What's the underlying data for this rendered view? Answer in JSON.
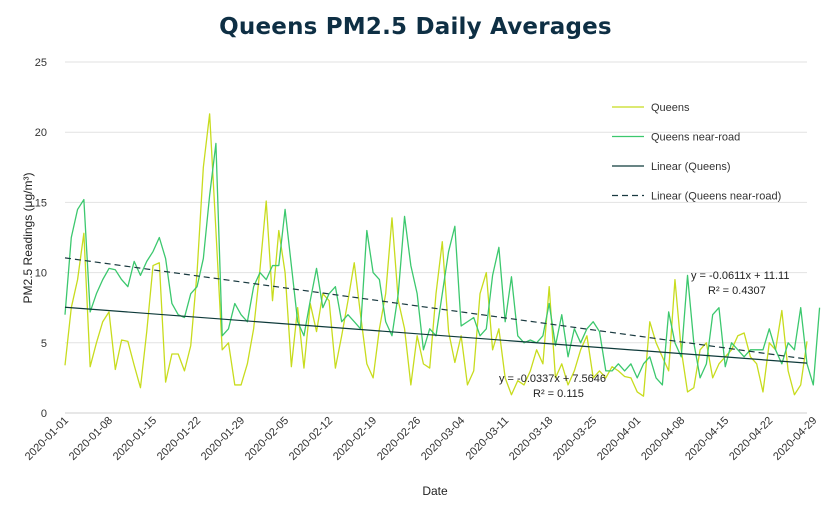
{
  "chart_data": {
    "type": "line",
    "title": "Queens PM2.5 Daily Averages",
    "xlabel": "Date",
    "ylabel": "PM2.5 Readings (μg/m³)",
    "ylim": [
      0,
      25
    ],
    "yticks": [
      0,
      5,
      10,
      15,
      20,
      25
    ],
    "grid": "horizontal",
    "legend_position": "right",
    "start_date": "2020-01-01",
    "xtick_labels": [
      "2020-01-01",
      "2020-01-08",
      "2020-01-15",
      "2020-01-22",
      "2020-01-29",
      "2020-02-05",
      "2020-02-12",
      "2020-02-19",
      "2020-02-26",
      "2020-03-04",
      "2020-03-11",
      "2020-03-18",
      "2020-03-25",
      "2020-04-01",
      "2020-04-08",
      "2020-04-15",
      "2020-04-22",
      "2020-04-29"
    ],
    "series": [
      {
        "name": "Queens",
        "color": "#c8dc1e",
        "values": [
          3.4,
          7.5,
          9.5,
          12.8,
          3.3,
          5.0,
          6.5,
          7.2,
          3.1,
          5.2,
          5.1,
          3.4,
          1.8,
          5.8,
          10.5,
          10.7,
          2.2,
          4.2,
          4.2,
          3.0,
          4.8,
          10.0,
          17.5,
          21.3,
          13.0,
          4.5,
          5.0,
          2.0,
          2.0,
          3.5,
          6.0,
          10.2,
          15.1,
          8.0,
          13.0,
          10.0,
          3.3,
          7.5,
          3.2,
          7.8,
          5.8,
          8.5,
          8.0,
          3.2,
          5.5,
          8.0,
          10.7,
          7.0,
          3.5,
          2.5,
          6.0,
          8.5,
          13.9,
          8.0,
          6.0,
          2.0,
          5.5,
          3.5,
          3.2,
          8.5,
          12.2,
          5.8,
          3.6,
          5.5,
          2.0,
          3.0,
          8.5,
          10.0,
          4.5,
          6.0,
          2.5,
          1.3,
          2.3,
          2.0,
          3.0,
          4.5,
          3.5,
          9.0,
          2.5,
          3.5,
          2.0,
          3.0,
          4.5,
          5.5,
          2.5,
          3.0,
          2.5,
          3.3,
          3.0,
          2.6,
          2.5,
          1.5,
          1.2,
          6.5,
          5.0,
          4.0,
          3.0,
          9.5,
          4.5,
          1.5,
          1.8,
          4.5,
          5.0,
          2.5,
          3.5,
          4.0,
          4.5,
          5.5,
          5.7,
          4.0,
          3.5,
          1.5,
          5.0,
          4.5,
          7.3,
          3.0,
          1.3,
          2.0,
          5.1
        ],
        "trendline": {
          "name": "Linear (Queens)",
          "equation": "y = -0.0337x + 7.5646",
          "r2": "R² = 0.115",
          "slope": -0.0337,
          "intercept": 7.5646,
          "style": "solid",
          "color": "#0e3a3a"
        }
      },
      {
        "name": "Queens near-road",
        "color": "#3cc86e",
        "values": [
          7.0,
          12.5,
          14.5,
          15.2,
          7.2,
          8.5,
          9.5,
          10.3,
          10.2,
          9.5,
          9.0,
          10.8,
          9.8,
          10.8,
          11.5,
          12.5,
          11.0,
          7.8,
          7.0,
          6.8,
          8.5,
          9.0,
          11.0,
          15.5,
          19.2,
          5.5,
          6.0,
          7.8,
          7.0,
          6.5,
          9.0,
          10.0,
          9.5,
          10.5,
          10.5,
          14.5,
          10.5,
          6.5,
          5.5,
          8.0,
          10.3,
          7.5,
          8.5,
          9.0,
          6.5,
          7.0,
          6.5,
          6.0,
          13.0,
          10.0,
          9.5,
          6.5,
          5.5,
          8.5,
          14.0,
          10.5,
          8.5,
          4.5,
          6.0,
          5.5,
          8.5,
          11.5,
          13.3,
          6.2,
          6.5,
          6.8,
          5.5,
          6.0,
          9.8,
          11.8,
          6.5,
          9.7,
          5.5,
          5.0,
          5.2,
          5.0,
          5.5,
          7.8,
          4.8,
          7.0,
          4.0,
          6.0,
          5.0,
          6.0,
          6.5,
          5.8,
          3.0,
          3.0,
          3.5,
          3.0,
          3.5,
          2.5,
          3.5,
          4.0,
          2.5,
          2.0,
          7.2,
          5.0,
          4.0,
          9.8,
          5.0,
          2.5,
          3.5,
          7.0,
          7.5,
          3.3,
          5.0,
          4.5,
          4.0,
          4.5,
          4.5,
          4.5,
          6.0,
          4.5,
          3.5,
          5.0,
          4.5,
          7.5,
          3.5,
          2.0,
          7.5
        ],
        "trendline": {
          "name": "Linear (Queens near-road)",
          "equation": "y = -0.0611x + 11.11",
          "r2": "R² = 0.4307",
          "slope": -0.0611,
          "intercept": 11.11,
          "style": "dashed",
          "color": "#1a3a40"
        }
      }
    ]
  }
}
